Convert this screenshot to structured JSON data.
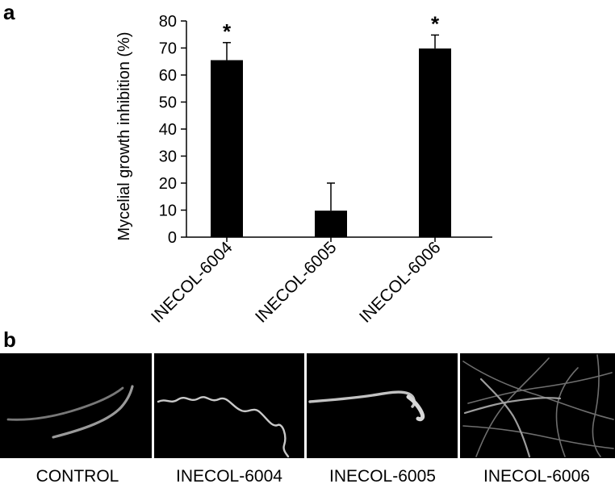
{
  "panel_a_label": "a",
  "panel_b_label": "b",
  "chart_data": {
    "type": "bar",
    "title": "",
    "xlabel": "",
    "ylabel": "Mycelial growth inhibition (%)",
    "ylim": [
      0,
      80
    ],
    "yticks": [
      0,
      10,
      20,
      30,
      40,
      50,
      60,
      70,
      80
    ],
    "categories": [
      "INECOL-6004",
      "INECOL-6005",
      "INECOL-6006"
    ],
    "values": [
      65.5,
      9.8,
      69.8
    ],
    "errors": [
      6.5,
      10.2,
      5.0
    ],
    "significance": [
      "*",
      "",
      "*"
    ],
    "bar_color": "#000000",
    "grid": false
  },
  "micrographs": {
    "background": "#000000",
    "captions": [
      "CONTROL",
      "INECOL-6004",
      "INECOL-6005",
      "INECOL-6006"
    ]
  }
}
